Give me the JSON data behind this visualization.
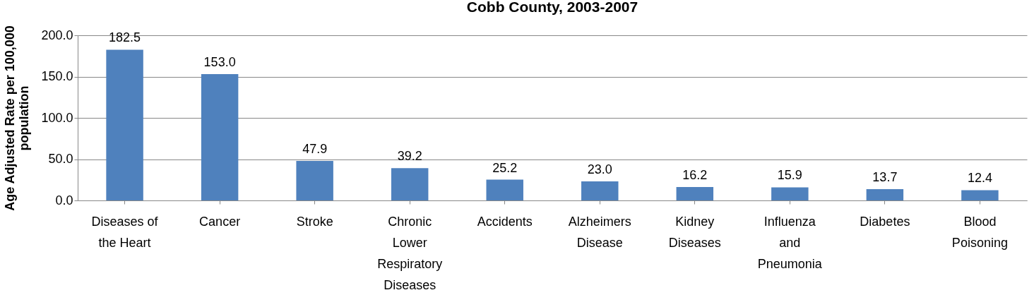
{
  "chart_data": {
    "type": "bar",
    "title": "Cobb County, 2003-2007",
    "ylabel": "Age Adjusted Rate per 100,000 population",
    "categories": [
      "Diseases of the Heart",
      "Cancer",
      "Stroke",
      "Chronic Lower Respiratory Diseases",
      "Accidents",
      "Alzheimers Disease",
      "Kidney Diseases",
      "Influenza and Pneumonia",
      "Diabetes",
      "Blood Poisoning"
    ],
    "values": [
      182.5,
      153.0,
      47.9,
      39.2,
      25.2,
      23.0,
      16.2,
      15.9,
      13.7,
      12.4
    ],
    "value_labels": [
      "182.5",
      "153.0",
      "47.9",
      "39.2",
      "25.2",
      "23.0",
      "16.2",
      "15.9",
      "13.7",
      "12.4"
    ],
    "color": "#4f81bd",
    "ylim": [
      0,
      200
    ],
    "yticks": [
      {
        "value": 0,
        "label": "0.0"
      },
      {
        "value": 50,
        "label": "50.0"
      },
      {
        "value": 100,
        "label": "100.0"
      },
      {
        "value": 150,
        "label": "150.0"
      },
      {
        "value": 200,
        "label": "200.0"
      }
    ],
    "grid": "y"
  }
}
